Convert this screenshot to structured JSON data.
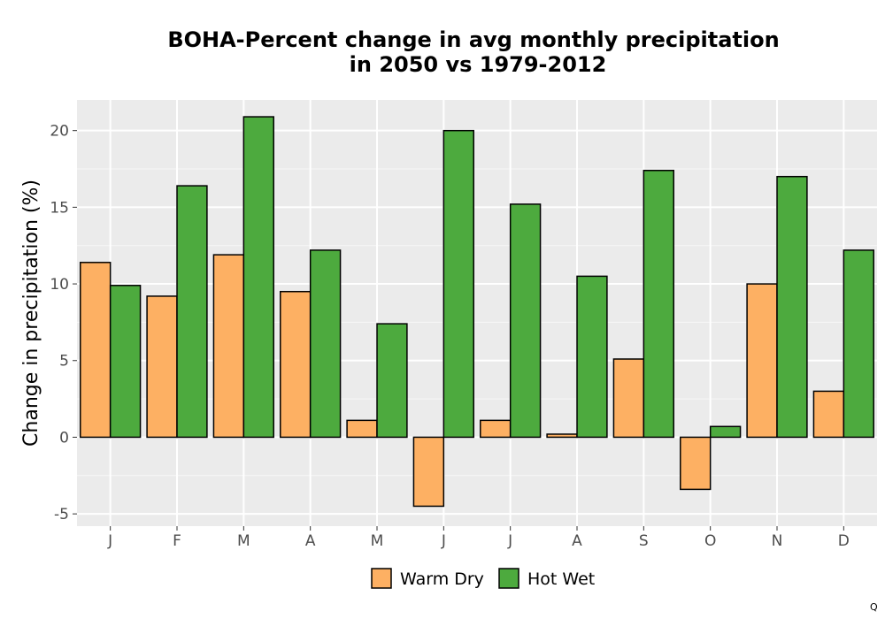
{
  "chart_data": {
    "type": "bar",
    "title": "BOHA-Percent change in avg monthly precipitation\nin 2050 vs 1979-2012",
    "xlabel": "",
    "ylabel": "Change in precipitation (%)",
    "categories": [
      "J",
      "F",
      "M",
      "A",
      "M",
      "J",
      "J",
      "A",
      "S",
      "O",
      "N",
      "D"
    ],
    "series": [
      {
        "name": "Warm Dry",
        "color": "#FDB063",
        "values": [
          11.4,
          9.2,
          11.9,
          9.5,
          1.1,
          -4.5,
          1.1,
          0.2,
          5.1,
          -3.4,
          10.0,
          3.0
        ]
      },
      {
        "name": "Hot Wet",
        "color": "#4DAA3E",
        "values": [
          9.9,
          16.4,
          20.9,
          12.2,
          7.4,
          20.0,
          15.2,
          10.5,
          17.4,
          0.7,
          17.0,
          12.2
        ]
      }
    ],
    "ylim": [
      -5.8,
      22.0
    ],
    "yticks": [
      -5,
      0,
      5,
      10,
      15,
      20
    ],
    "grid": true,
    "legend_position": "bottom",
    "panel_background": "#EBEBEB"
  },
  "footer": {
    "mark": "Q"
  }
}
